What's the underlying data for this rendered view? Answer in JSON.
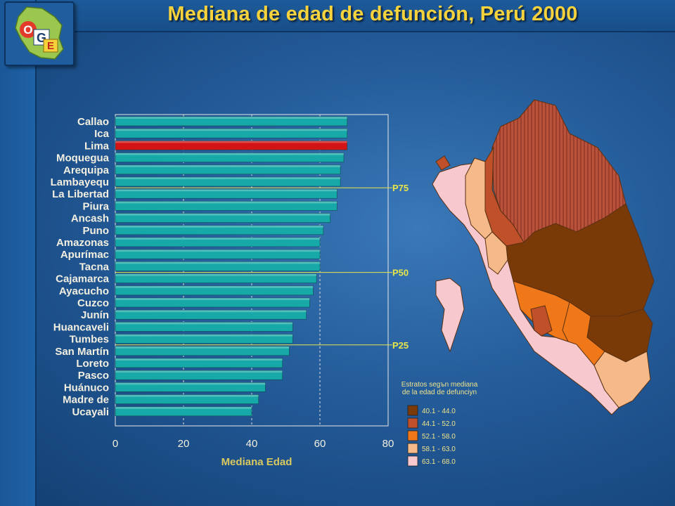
{
  "header": {
    "title": "Mediana de edad de defunción, Perú 2000",
    "logo_letters": [
      "O",
      "G",
      "E"
    ]
  },
  "colors": {
    "bar_default": "#17a9a8",
    "bar_highlight": "#d21414",
    "percentile_line": "#e8e64a",
    "title_text": "#f6d23c",
    "axis_title": "#d8c860"
  },
  "chart_data": {
    "type": "bar",
    "orientation": "horizontal",
    "categories": [
      "Callao",
      "Ica",
      "Lima",
      "Moquegua",
      "Arequipa",
      "Lambayequ",
      "La Libertad",
      "Piura",
      "Ancash",
      "Puno",
      "Amazonas",
      "Apurímac",
      "Tacna",
      "Cajamarca",
      "Ayacucho",
      "Cuzco",
      "Junín",
      "Huancaveli",
      "Tumbes",
      "San Martín",
      "Loreto",
      "Pasco",
      "Huánuco",
      "Madre de",
      "Ucayali"
    ],
    "values": [
      68,
      68,
      68,
      67,
      66,
      66,
      65,
      65,
      63,
      61,
      60,
      60,
      60,
      59,
      58,
      57,
      56,
      52,
      52,
      51,
      49,
      49,
      44,
      42,
      40
    ],
    "highlight": "Lima",
    "xlabel": "Mediana Edad",
    "ylabel": "",
    "xlim": [
      0,
      80
    ],
    "xticks": [
      0,
      20,
      40,
      60,
      80
    ],
    "grid": true,
    "percentile_markers": [
      {
        "label": "P75",
        "after_category": "Lambayequ"
      },
      {
        "label": "P50",
        "after_category": "Tacna"
      },
      {
        "label": "P25",
        "after_category": "Tumbes"
      }
    ]
  },
  "map_legend": {
    "title_line1": "Estratos segъn mediana",
    "title_line2": "de la edad de defunciуn",
    "items": [
      {
        "label": "40.1 - 44.0",
        "color": "#7a3a08"
      },
      {
        "label": "44.1 - 52.0",
        "color": "#c0502a"
      },
      {
        "label": "52.1 - 58.0",
        "color": "#f07818"
      },
      {
        "label": "58.1 - 63.0",
        "color": "#f5b98a"
      },
      {
        "label": "63.1 - 68.0",
        "color": "#f7c9cf"
      }
    ]
  }
}
